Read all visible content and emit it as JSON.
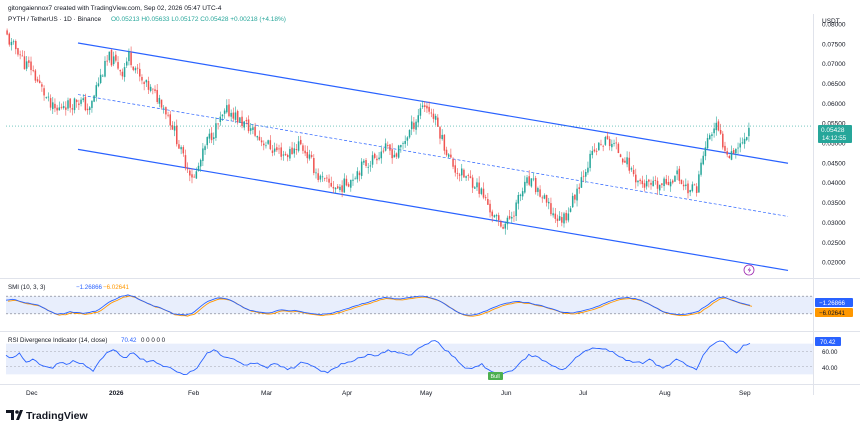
{
  "header": {
    "credit": "gitongaiennox7 created with TradingView.com, Sep 02, 2026 05:47 UTC-4",
    "symbol_line": "PYTH / TetherUS · 1D · Binance",
    "ohlc": "O0.05213 H0.05633 L0.05172 C0.05428 +0.00218 (+4.18%)"
  },
  "price_axis": {
    "currency": "USDT",
    "ticks": [
      "0.08000",
      "0.07500",
      "0.07000",
      "0.06500",
      "0.06000",
      "0.05500",
      "0.05000",
      "0.04500",
      "0.04000",
      "0.03500",
      "0.03000",
      "0.02500",
      "0.02000"
    ],
    "last_price": "0.05428",
    "countdown": "14:12:55"
  },
  "time_axis": {
    "labels": [
      "Dec",
      "2026",
      "Feb",
      "Mar",
      "Apr",
      "May",
      "Jun",
      "Jul",
      "Aug",
      "Sep"
    ]
  },
  "smi_panel": {
    "title": "SMI (10, 3, 3)",
    "value_1": "−1.26866",
    "value_2": "−6.02641",
    "badge_1": "−1.26866",
    "badge_2": "−6.02641"
  },
  "rsi_panel": {
    "title": "RSI Divergence Indicator (14, close)",
    "value": "70.42",
    "extras": "0 0 0 0 0",
    "badge": "70.42",
    "ticks": [
      "60.00",
      "40.00"
    ],
    "bull_label": "Bull"
  },
  "logo_text": "TradingView",
  "colors": {
    "up": "#26a69a",
    "down": "#ef5350",
    "channel": "#2962ff",
    "smi_line": "#2962ff",
    "smi_signal": "#ff9800",
    "rsi_line": "#2962ff",
    "band_fill": "#e8eefc",
    "bull": "#4caf50"
  },
  "chart_data": {
    "type": "candlestick",
    "symbol": "PYTH / TetherUS",
    "interval": "1D",
    "exchange": "Binance",
    "ylim": [
      0.0165,
      0.0825
    ],
    "last_close": 0.05428,
    "channel_lines": [
      {
        "style": "solid",
        "from": [
          "Nov 2025",
          0.0752
        ],
        "to": [
          "Sep 2026",
          0.0449
        ]
      },
      {
        "style": "dashed",
        "from": [
          "Nov 2025",
          0.0622
        ],
        "to": [
          "Sep 2026",
          0.0315
        ]
      },
      {
        "style": "solid",
        "from": [
          "Nov 2025",
          0.0484
        ],
        "to": [
          "Sep 2026",
          0.0179
        ]
      }
    ],
    "close_path": [
      0.078,
      0.0745,
      0.0735,
      0.07,
      0.069,
      0.0655,
      0.0625,
      0.059,
      0.058,
      0.06,
      0.0595,
      0.061,
      0.06,
      0.058,
      0.064,
      0.068,
      0.0715,
      0.07,
      0.068,
      0.072,
      0.069,
      0.065,
      0.064,
      0.062,
      0.0605,
      0.057,
      0.053,
      0.0475,
      0.044,
      0.041,
      0.0455,
      0.0505,
      0.053,
      0.0555,
      0.058,
      0.0575,
      0.0555,
      0.0545,
      0.053,
      0.051,
      0.05,
      0.0485,
      0.048,
      0.047,
      0.048,
      0.05,
      0.048,
      0.045,
      0.0415,
      0.04,
      0.0395,
      0.0385,
      0.0395,
      0.041,
      0.043,
      0.0445,
      0.0455,
      0.047,
      0.0485,
      0.048,
      0.047,
      0.05,
      0.053,
      0.056,
      0.06,
      0.0585,
      0.0555,
      0.051,
      0.0465,
      0.0435,
      0.042,
      0.041,
      0.04,
      0.0375,
      0.0345,
      0.031,
      0.0295,
      0.03,
      0.033,
      0.037,
      0.04,
      0.0395,
      0.037,
      0.0345,
      0.032,
      0.0305,
      0.032,
      0.0355,
      0.04,
      0.044,
      0.047,
      0.049,
      0.0505,
      0.05,
      0.048,
      0.046,
      0.043,
      0.0405,
      0.0395,
      0.039,
      0.039,
      0.0395,
      0.041,
      0.042,
      0.0395,
      0.038,
      0.039,
      0.047,
      0.052,
      0.054,
      0.05,
      0.0475,
      0.049,
      0.05,
      0.0542
    ],
    "smi": {
      "series": [
        {
          "name": "SMI",
          "last": -1.26866
        },
        {
          "name": "Signal",
          "last": -6.02641
        }
      ],
      "path": [
        22,
        26,
        18,
        10,
        5,
        0,
        -15,
        -30,
        -42,
        -40,
        -30,
        -34,
        -38,
        -34,
        -28,
        -10,
        12,
        25,
        40,
        46,
        38,
        22,
        8,
        -5,
        -12,
        -25,
        -40,
        -44,
        -46,
        -38,
        -15,
        8,
        22,
        32,
        30,
        22,
        5,
        -12,
        -24,
        -30,
        -34,
        -36,
        -28,
        -22,
        -26,
        -24,
        -30,
        -36,
        -40,
        -44,
        -40,
        -36,
        -28,
        -18,
        -8,
        0,
        8,
        18,
        28,
        34,
        32,
        28,
        30,
        34,
        38,
        40,
        34,
        26,
        12,
        -8,
        -26,
        -40,
        -46,
        -44,
        -36,
        -26,
        -12,
        0,
        8,
        14,
        16,
        12,
        6,
        0,
        -8,
        -16,
        -26,
        -34,
        -36,
        -32,
        -26,
        -18,
        -8,
        4,
        16,
        26,
        32,
        34,
        30,
        22,
        8,
        -8,
        -24,
        -34,
        -40,
        -44,
        -42,
        -36,
        -28,
        -8,
        14,
        32,
        36,
        24,
        14,
        6,
        -1.3
      ]
    },
    "rsi": {
      "ylim": [
        20,
        80
      ],
      "levels": [
        60,
        40
      ],
      "last": 70.42,
      "path": [
        55,
        52,
        58,
        46,
        50,
        43,
        40,
        38,
        45,
        43,
        48,
        44,
        40,
        34,
        48,
        58,
        62,
        55,
        52,
        58,
        50,
        46,
        48,
        43,
        40,
        36,
        32,
        30,
        35,
        45,
        58,
        62,
        55,
        52,
        50,
        45,
        42,
        44,
        42,
        38,
        44,
        40,
        36,
        38,
        46,
        44,
        40,
        34,
        32,
        38,
        44,
        46,
        48,
        52,
        56,
        54,
        58,
        62,
        60,
        58,
        55,
        60,
        66,
        70,
        74,
        66,
        60,
        52,
        42,
        38,
        40,
        44,
        36,
        32,
        30,
        34,
        38,
        48,
        56,
        54,
        48,
        44,
        40,
        36,
        42,
        52,
        58,
        62,
        64,
        63,
        60,
        56,
        52,
        48,
        46,
        44,
        50,
        42,
        38,
        42,
        50,
        46,
        40,
        36,
        55,
        66,
        72,
        73,
        64,
        58,
        68,
        70.4
      ],
      "markers": [
        {
          "label": "Bull"
        }
      ]
    }
  }
}
